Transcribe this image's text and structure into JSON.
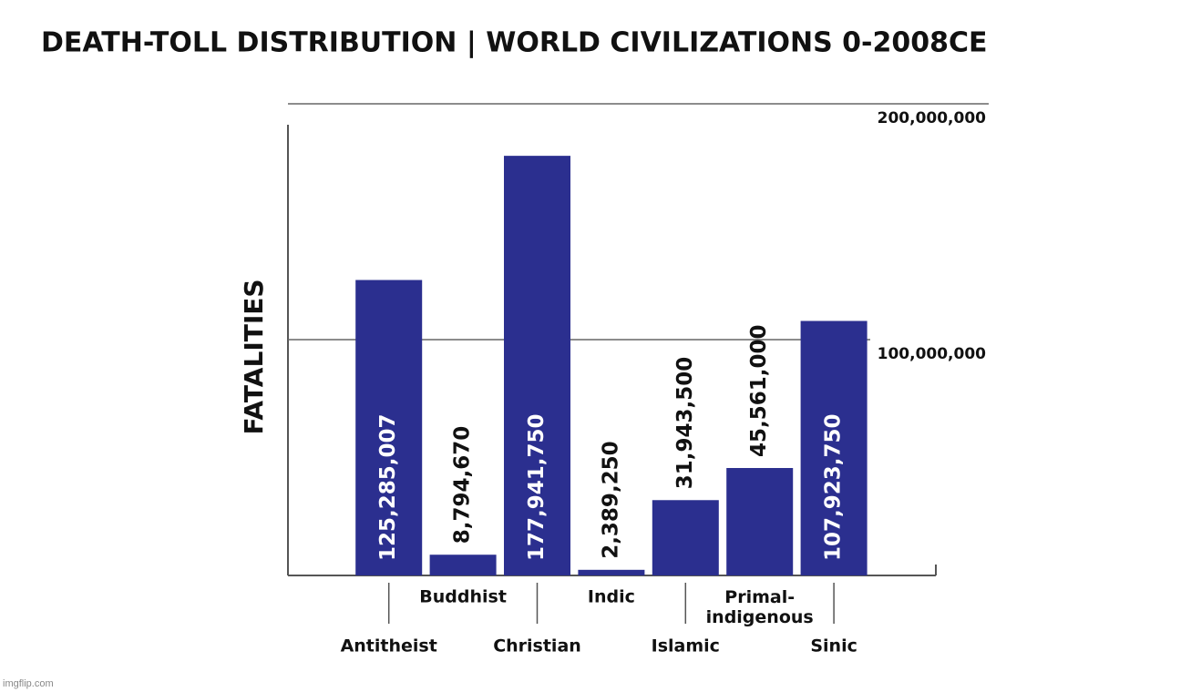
{
  "chart_data": {
    "type": "bar",
    "title": "DEATH-TOLL DISTRIBUTION | WORLD CIVILIZATIONS 0-2008CE",
    "y_label": "FATALITIES",
    "categories": [
      "Antitheist",
      "Buddhist",
      "Christian",
      "Indic",
      "Islamic",
      "Primal-\nindigenous",
      "Sinic"
    ],
    "values": [
      125285007,
      8794670,
      177941750,
      2389250,
      31943500,
      45561000,
      107923750
    ],
    "value_labels": [
      "125,285,007",
      "8,794,670",
      "177,941,750",
      "2,389,250",
      "31,943,500",
      "45,561,000",
      "107,923,750"
    ],
    "color": "#2b2f8f",
    "ylim": [
      0,
      200000000
    ],
    "yticks": [
      {
        "value": 100000000,
        "label": "100,000,000"
      },
      {
        "value": 200000000,
        "label": "200,000,000"
      }
    ],
    "grid": true,
    "watermark": "imgflip.com"
  }
}
